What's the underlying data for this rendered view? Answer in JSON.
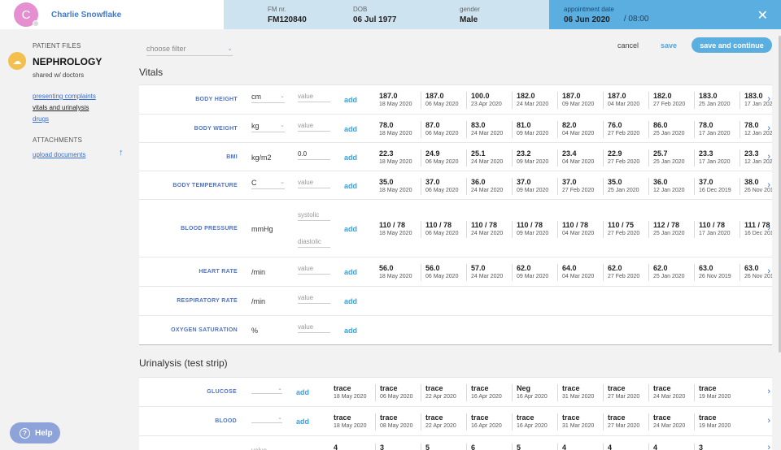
{
  "header": {
    "avatar_initial": "C",
    "patient_name": "Charlie Snowflake",
    "fm_label": "FM nr.",
    "fm_value": "FM120840",
    "dob_label": "DOB",
    "dob_value": "06 Jul 1977",
    "gender_label": "gender",
    "gender_value": "Male",
    "appt_label": "appointment date",
    "appt_date": "06 Jun 2020",
    "appt_time": "/ 08:00",
    "close_icon": "close-icon"
  },
  "sidebar": {
    "patient_files": "PATIENT FILES",
    "department": "NEPHROLOGY",
    "shared": "shared w/ doctors",
    "links": [
      "presenting complaints",
      "vitals and urinalysis",
      "drugs"
    ],
    "attachments": "ATTACHMENTS",
    "upload": "upload documents",
    "help": "Help"
  },
  "toolbar": {
    "filter_placeholder": "choose filter",
    "cancel": "cancel",
    "save": "save",
    "save_continue": "save and continue"
  },
  "vitals": {
    "title": "Vitals",
    "rows": [
      {
        "label": "BODY HEIGHT",
        "unit": "cm",
        "unit_select": true,
        "input": "value",
        "add": "add",
        "readings": [
          [
            "187.0",
            "18 May 2020"
          ],
          [
            "187.0",
            "06 May 2020"
          ],
          [
            "100.0",
            "23 Apr 2020"
          ],
          [
            "182.0",
            "24 Mar 2020"
          ],
          [
            "187.0",
            "09 Mar 2020"
          ],
          [
            "187.0",
            "04 Mar 2020"
          ],
          [
            "182.0",
            "27 Feb 2020"
          ],
          [
            "183.0",
            "25 Jan 2020"
          ],
          [
            "183.0",
            "17 Jan 2020"
          ]
        ]
      },
      {
        "label": "BODY WEIGHT",
        "unit": "kg",
        "unit_select": true,
        "input": "value",
        "add": "add",
        "readings": [
          [
            "78.0",
            "18 May 2020"
          ],
          [
            "87.0",
            "06 May 2020"
          ],
          [
            "83.0",
            "24 Mar 2020"
          ],
          [
            "81.0",
            "09 Mar 2020"
          ],
          [
            "82.0",
            "04 Mar 2020"
          ],
          [
            "76.0",
            "27 Feb 2020"
          ],
          [
            "86.0",
            "25 Jan 2020"
          ],
          [
            "78.0",
            "17 Jan 2020"
          ],
          [
            "78.0",
            "12 Jan 2020"
          ]
        ]
      },
      {
        "label": "BMI",
        "unit": "kg/m2",
        "unit_select": false,
        "input": "0.0",
        "add": "add",
        "readings": [
          [
            "22.3",
            "18 May 2020"
          ],
          [
            "24.9",
            "06 May 2020"
          ],
          [
            "25.1",
            "24 Mar 2020"
          ],
          [
            "23.2",
            "09 Mar 2020"
          ],
          [
            "23.4",
            "04 Mar 2020"
          ],
          [
            "22.9",
            "27 Feb 2020"
          ],
          [
            "25.7",
            "25 Jan 2020"
          ],
          [
            "23.3",
            "17 Jan 2020"
          ],
          [
            "23.3",
            "12 Jan 2020"
          ]
        ]
      },
      {
        "label": "BODY TEMPERATURE",
        "unit": "C",
        "unit_select": true,
        "input": "value",
        "add": "add",
        "readings": [
          [
            "35.0",
            "18 May 2020"
          ],
          [
            "37.0",
            "06 May 2020"
          ],
          [
            "36.0",
            "24 Mar 2020"
          ],
          [
            "37.0",
            "09 Mar 2020"
          ],
          [
            "37.0",
            "27 Feb 2020"
          ],
          [
            "35.0",
            "25 Jan 2020"
          ],
          [
            "36.0",
            "12 Jan 2020"
          ],
          [
            "37.0",
            "16 Dec 2019"
          ],
          [
            "38.0",
            "26 Nov 2019"
          ]
        ]
      },
      {
        "label": "BLOOD PRESSURE",
        "unit": "mmHg",
        "unit_select": false,
        "input": "systolic",
        "input2": "diastolic",
        "add": "add",
        "readings": [
          [
            "110 / 78",
            "18 May 2020"
          ],
          [
            "110 / 78",
            "06 May 2020"
          ],
          [
            "110 / 78",
            "24 Mar 2020"
          ],
          [
            "110 / 78",
            "09 Mar 2020"
          ],
          [
            "110 / 78",
            "04 Mar 2020"
          ],
          [
            "110 / 75",
            "27 Feb 2020"
          ],
          [
            "112 / 78",
            "25 Jan 2020"
          ],
          [
            "110 / 78",
            "17 Jan 2020"
          ],
          [
            "111 / 78",
            "16 Dec 2019"
          ]
        ]
      },
      {
        "label": "HEART RATE",
        "unit": "/min",
        "unit_select": false,
        "input": "value",
        "add": "add",
        "readings": [
          [
            "56.0",
            "18 May 2020"
          ],
          [
            "56.0",
            "06 May 2020"
          ],
          [
            "57.0",
            "24 Mar 2020"
          ],
          [
            "62.0",
            "09 Mar 2020"
          ],
          [
            "64.0",
            "04 Mar 2020"
          ],
          [
            "62.0",
            "27 Feb 2020"
          ],
          [
            "62.0",
            "25 Jan 2020"
          ],
          [
            "63.0",
            "26 Nov 2019"
          ],
          [
            "63.0",
            "26 Nov 2019"
          ]
        ]
      },
      {
        "label": "RESPIRATORY RATE",
        "unit": "/min",
        "unit_select": false,
        "input": "value",
        "add": "add",
        "readings": []
      },
      {
        "label": "OXYGEN SATURATION",
        "unit": "%",
        "unit_select": false,
        "input": "value",
        "add": "add",
        "readings": []
      }
    ]
  },
  "urinalysis": {
    "title": "Urinalysis (test strip)",
    "rows": [
      {
        "label": "GLUCOSE",
        "add": "add",
        "readings": [
          [
            "trace",
            "18 May 2020"
          ],
          [
            "trace",
            "06 May 2020"
          ],
          [
            "trace",
            "22 Apr 2020"
          ],
          [
            "trace",
            "16 Apr 2020"
          ],
          [
            "Neg",
            "16 Apr 2020"
          ],
          [
            "trace",
            "31 Mar 2020"
          ],
          [
            "trace",
            "27 Mar 2020"
          ],
          [
            "trace",
            "24 Mar 2020"
          ],
          [
            "trace",
            "19 Mar 2020"
          ]
        ]
      },
      {
        "label": "BLOOD",
        "add": "add",
        "readings": [
          [
            "trace",
            "18 May 2020"
          ],
          [
            "trace",
            "08 May 2020"
          ],
          [
            "trace",
            "22 Apr 2020"
          ],
          [
            "trace",
            "16 Apr 2020"
          ],
          [
            "trace",
            "16 Apr 2020"
          ],
          [
            "trace",
            "31 Mar 2020"
          ],
          [
            "trace",
            "27 Mar 2020"
          ],
          [
            "trace",
            "24 Mar 2020"
          ],
          [
            "trace",
            "19 Mar 2020"
          ]
        ]
      },
      {
        "label": "",
        "input": "value",
        "add": "add",
        "readings": [
          [
            "4",
            ""
          ],
          [
            "3",
            ""
          ],
          [
            "5",
            ""
          ],
          [
            "6",
            ""
          ],
          [
            "5",
            ""
          ],
          [
            "4",
            ""
          ],
          [
            "4",
            ""
          ],
          [
            "4",
            ""
          ],
          [
            "3",
            ""
          ]
        ]
      }
    ]
  }
}
